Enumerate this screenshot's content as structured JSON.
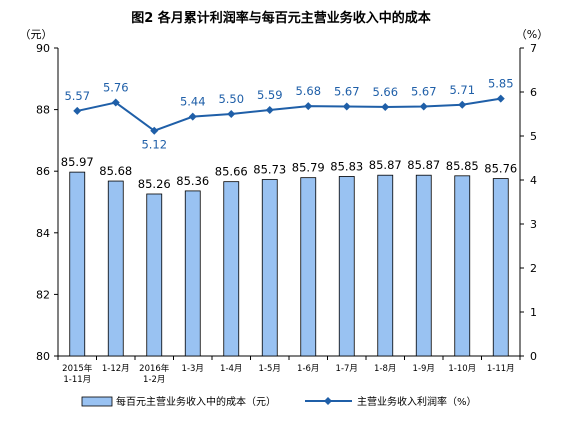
{
  "chart_data": {
    "type": "bar",
    "title": "图2 各月累计利润率与每百元主营业务收入中的成本",
    "left_axis": {
      "unit": "（元）",
      "ylim": [
        80,
        90
      ],
      "ticks": [
        "80",
        "82",
        "84",
        "86",
        "88",
        "90"
      ]
    },
    "right_axis": {
      "unit": "（%）",
      "ylim": [
        0,
        7
      ],
      "ticks": [
        "0",
        "1",
        "2",
        "3",
        "4",
        "5",
        "6",
        "7"
      ]
    },
    "categories": [
      [
        "2015年",
        "1-11月"
      ],
      [
        "1-12月"
      ],
      [
        "2016年",
        "1-2月"
      ],
      [
        "1-3月"
      ],
      [
        "1-4月"
      ],
      [
        "1-5月"
      ],
      [
        "1-6月"
      ],
      [
        "1-7月"
      ],
      [
        "1-8月"
      ],
      [
        "1-9月"
      ],
      [
        "1-10月"
      ],
      [
        "1-11月"
      ]
    ],
    "series": [
      {
        "name": "每百元主营业务收入中的成本（元）",
        "type": "bar",
        "axis": "left",
        "color": "#99c2f2",
        "values": [
          85.97,
          85.68,
          85.26,
          85.36,
          85.66,
          85.73,
          85.79,
          85.83,
          85.87,
          85.87,
          85.85,
          85.76
        ],
        "labels": [
          "85.97",
          "85.68",
          "85.26",
          "85.36",
          "85.66",
          "85.73",
          "85.79",
          "85.83",
          "85.87",
          "85.87",
          "85.85",
          "85.76"
        ]
      },
      {
        "name": "主营业务收入利润率（%）",
        "type": "line",
        "axis": "right",
        "color": "#1f5fa8",
        "values": [
          5.57,
          5.76,
          5.12,
          5.44,
          5.5,
          5.59,
          5.68,
          5.67,
          5.66,
          5.67,
          5.71,
          5.85
        ],
        "labels": [
          "5.57",
          "5.76",
          "5.12",
          "5.44",
          "5.50",
          "5.59",
          "5.68",
          "5.67",
          "5.66",
          "5.67",
          "5.71",
          "5.85"
        ]
      }
    ],
    "grid": false,
    "legend_position": "bottom"
  }
}
